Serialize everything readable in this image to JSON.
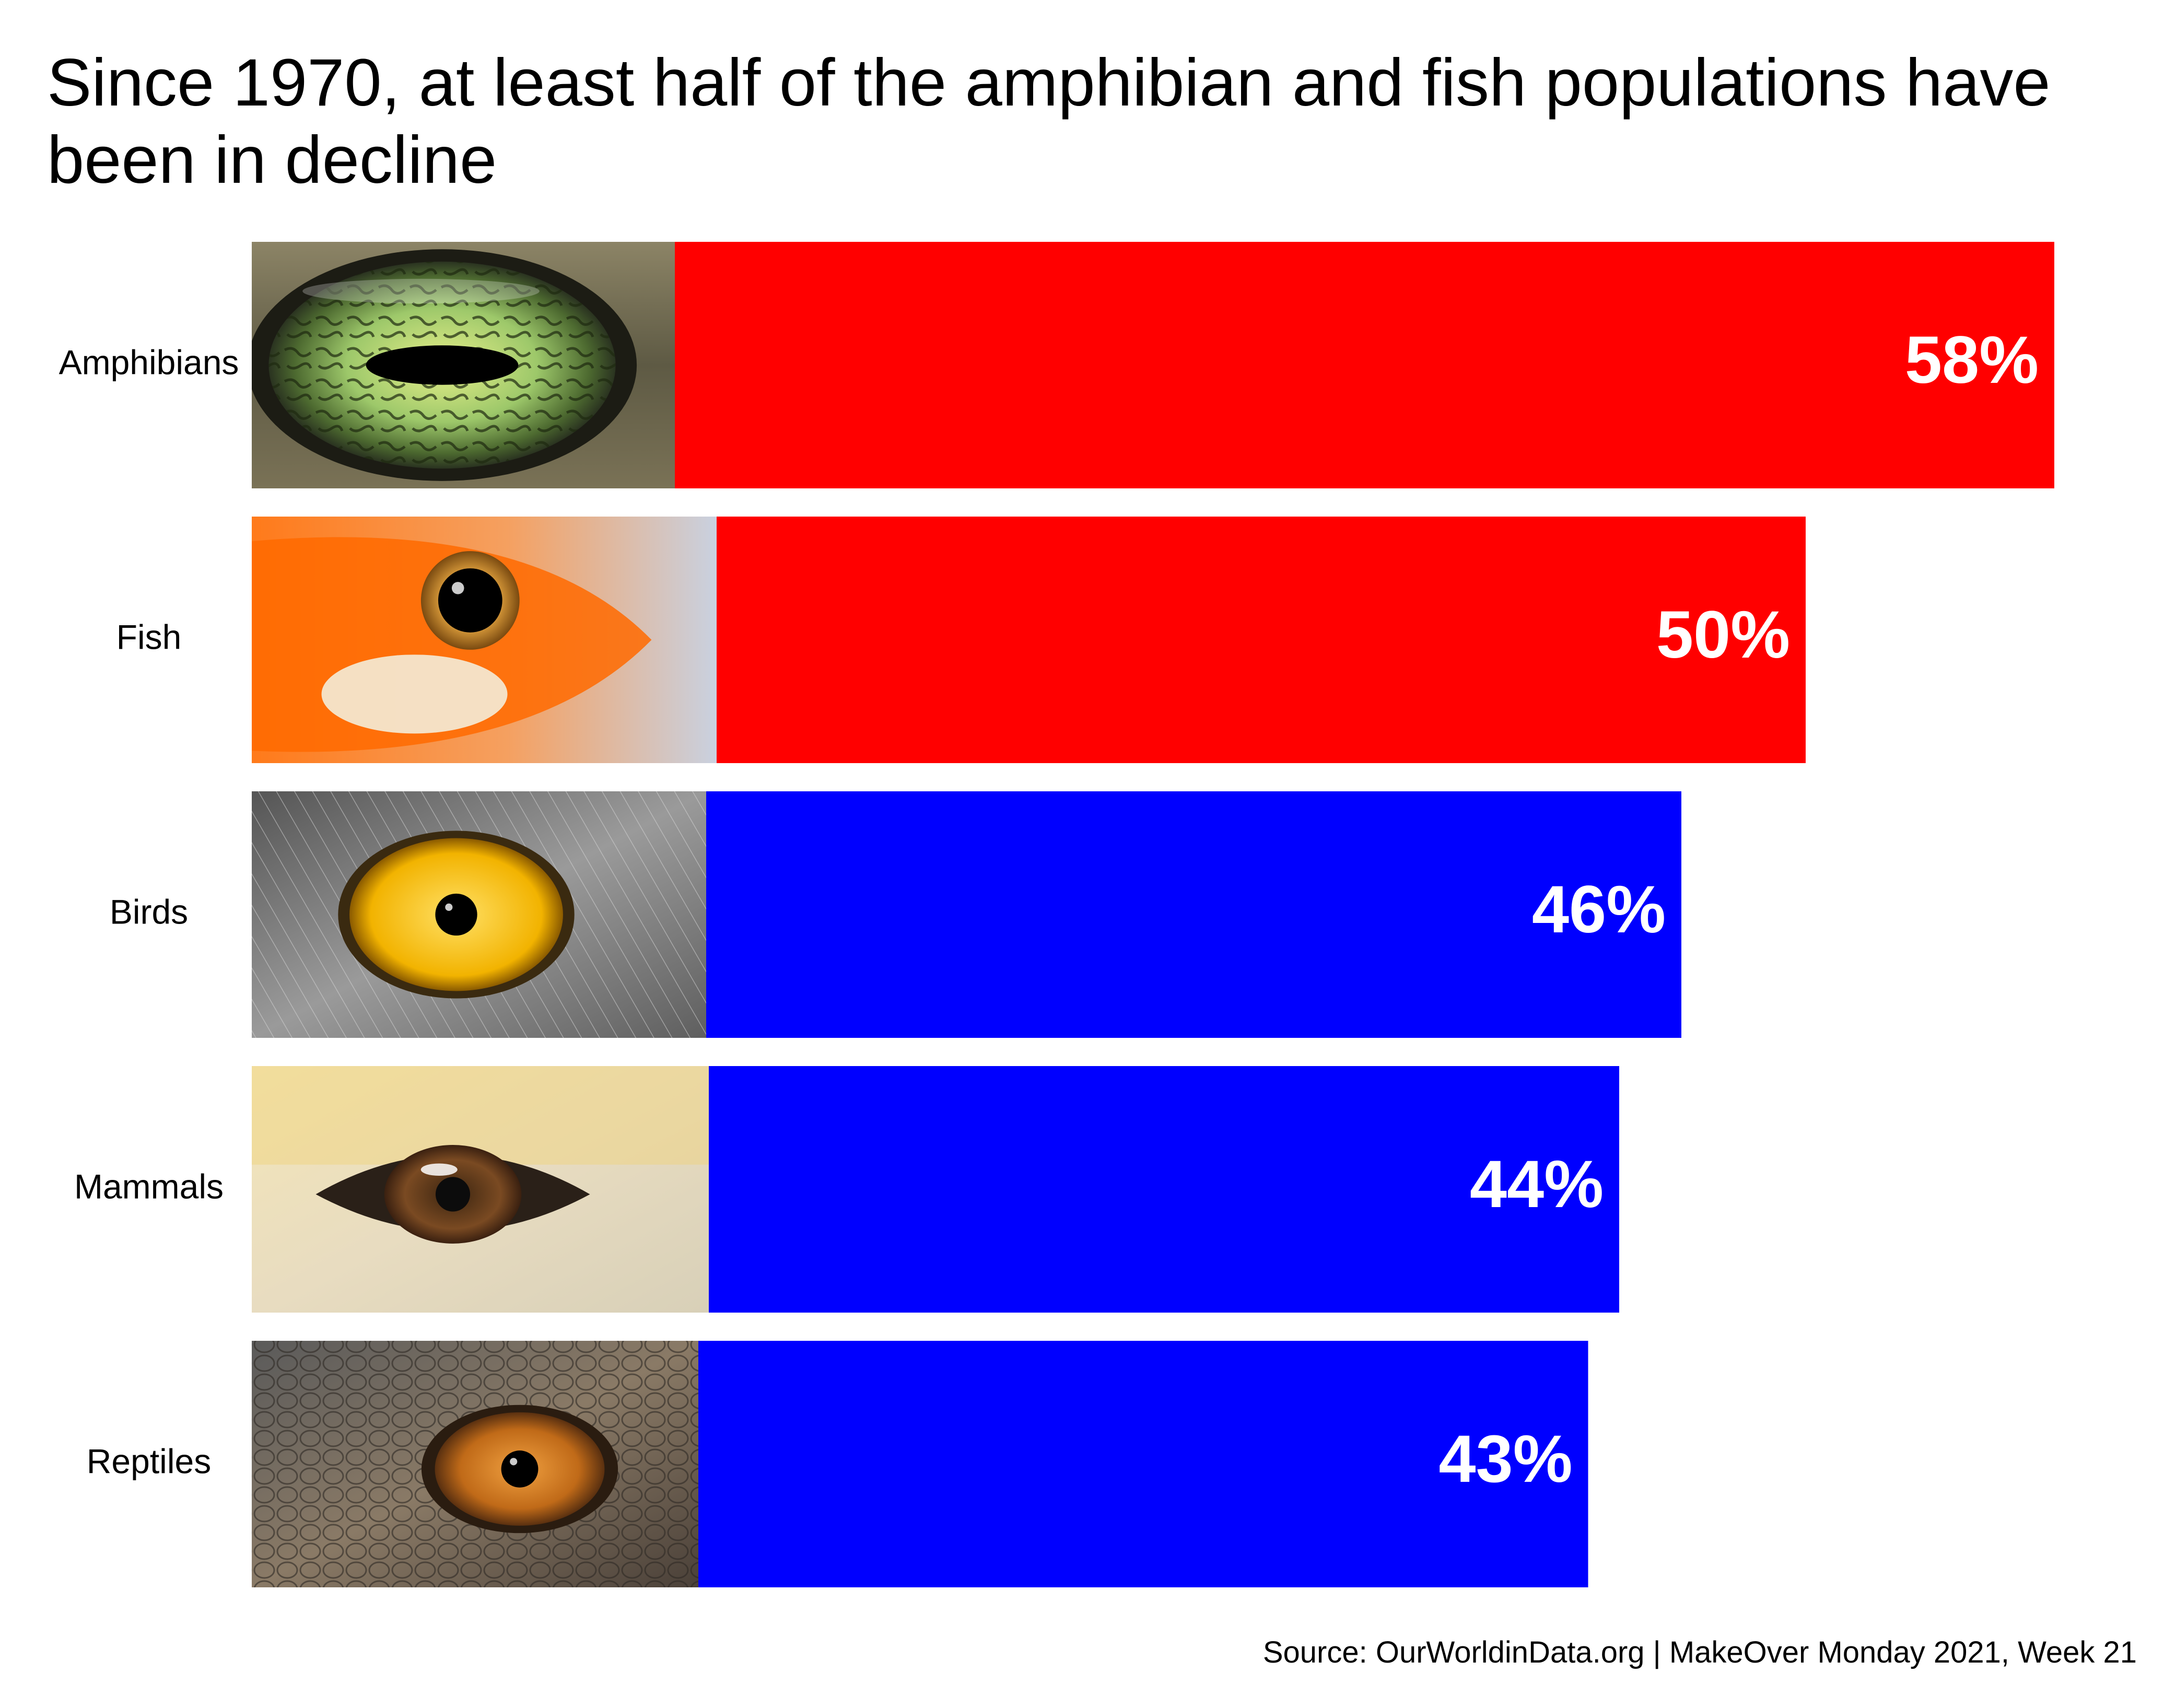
{
  "chart_data": {
    "type": "bar",
    "orientation": "horizontal",
    "title": "Since 1970, at least half of the amphibian and fish populations have been in decline",
    "categories": [
      "Amphibians",
      "Fish",
      "Birds",
      "Mammals",
      "Reptiles"
    ],
    "values": [
      58,
      50,
      46,
      44,
      43
    ],
    "value_labels": [
      "58%",
      "50%",
      "46%",
      "44%",
      "43%"
    ],
    "bar_colors": [
      "#ff0000",
      "#ff0000",
      "#0000ff",
      "#0000ff",
      "#0000ff"
    ],
    "images": [
      "amphibian-eye",
      "fish-eye",
      "bird-eye",
      "mammal-eye",
      "reptile-eye"
    ],
    "xlabel": "",
    "ylabel": "",
    "grid": false,
    "legend": "none"
  },
  "source": "Source: OurWorldinData.org | MakeOver Monday 2021, Week 21"
}
